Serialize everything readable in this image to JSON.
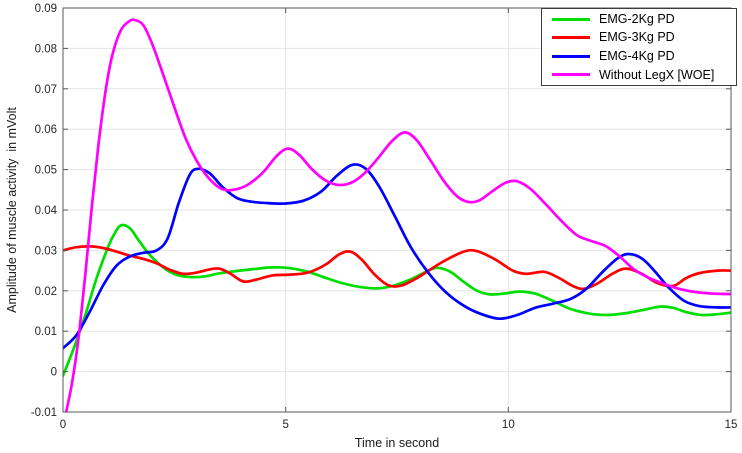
{
  "chart_data": {
    "type": "line",
    "title": "",
    "xlabel": "Time in second",
    "ylabel": "Amplitude of muscle activity  in mVolt",
    "xlim": [
      0,
      15
    ],
    "ylim": [
      -0.01,
      0.09
    ],
    "xticks": [
      0,
      5,
      10,
      15
    ],
    "xtick_labels": [
      "0",
      "5",
      "10",
      "15"
    ],
    "yticks": [
      -0.01,
      0,
      0.01,
      0.02,
      0.03,
      0.04,
      0.05,
      0.06,
      0.07,
      0.08,
      0.09
    ],
    "ytick_labels": [
      "-0.01",
      "0",
      "0.01",
      "0.02",
      "0.03",
      "0.04",
      "0.05",
      "0.06",
      "0.07",
      "0.08",
      "0.09"
    ],
    "grid": true,
    "grid_color": "#e4e4e4",
    "spine_color": "#5a5a5a",
    "background": "#ffffff",
    "legend": {
      "position": "top-right",
      "border_color": "#3c3c3c",
      "background": "#ffffff"
    },
    "series": [
      {
        "name": "EMG-2Kg PD",
        "color": "#00dd00",
        "points": [
          [
            0,
            -0.001
          ],
          [
            0.25,
            0.006
          ],
          [
            0.5,
            0.014
          ],
          [
            0.75,
            0.023
          ],
          [
            1.0,
            0.0305
          ],
          [
            1.15,
            0.034
          ],
          [
            1.3,
            0.0362
          ],
          [
            1.5,
            0.0355
          ],
          [
            1.7,
            0.0325
          ],
          [
            1.9,
            0.0295
          ],
          [
            2.1,
            0.0272
          ],
          [
            2.35,
            0.025
          ],
          [
            2.6,
            0.0238
          ],
          [
            2.9,
            0.0234
          ],
          [
            3.2,
            0.0236
          ],
          [
            3.5,
            0.0243
          ],
          [
            3.9,
            0.0249
          ],
          [
            4.3,
            0.0254
          ],
          [
            4.7,
            0.0258
          ],
          [
            5.1,
            0.0256
          ],
          [
            5.5,
            0.0247
          ],
          [
            5.9,
            0.0232
          ],
          [
            6.3,
            0.0218
          ],
          [
            6.7,
            0.0209
          ],
          [
            7.05,
            0.0206
          ],
          [
            7.4,
            0.0212
          ],
          [
            7.8,
            0.0228
          ],
          [
            8.15,
            0.0247
          ],
          [
            8.4,
            0.0257
          ],
          [
            8.7,
            0.0247
          ],
          [
            9.0,
            0.0222
          ],
          [
            9.3,
            0.02
          ],
          [
            9.6,
            0.0191
          ],
          [
            9.9,
            0.0193
          ],
          [
            10.25,
            0.0198
          ],
          [
            10.6,
            0.0193
          ],
          [
            11.0,
            0.0175
          ],
          [
            11.4,
            0.0155
          ],
          [
            11.8,
            0.0144
          ],
          [
            12.2,
            0.014
          ],
          [
            12.6,
            0.0144
          ],
          [
            13.0,
            0.0152
          ],
          [
            13.4,
            0.0161
          ],
          [
            13.7,
            0.0158
          ],
          [
            14.0,
            0.0147
          ],
          [
            14.35,
            0.014
          ],
          [
            14.7,
            0.0142
          ],
          [
            15,
            0.0146
          ]
        ]
      },
      {
        "name": "EMG-3Kg PD",
        "color": "#ff0000",
        "points": [
          [
            0,
            0.03
          ],
          [
            0.3,
            0.0308
          ],
          [
            0.6,
            0.031
          ],
          [
            0.9,
            0.0306
          ],
          [
            1.2,
            0.0297
          ],
          [
            1.5,
            0.0287
          ],
          [
            1.8,
            0.0279
          ],
          [
            2.1,
            0.0268
          ],
          [
            2.4,
            0.0252
          ],
          [
            2.7,
            0.0242
          ],
          [
            3.0,
            0.0245
          ],
          [
            3.25,
            0.0252
          ],
          [
            3.5,
            0.0255
          ],
          [
            3.75,
            0.0243
          ],
          [
            4.05,
            0.0223
          ],
          [
            4.35,
            0.0228
          ],
          [
            4.7,
            0.0238
          ],
          [
            5.1,
            0.024
          ],
          [
            5.5,
            0.0245
          ],
          [
            5.9,
            0.0265
          ],
          [
            6.2,
            0.029
          ],
          [
            6.45,
            0.0297
          ],
          [
            6.7,
            0.0278
          ],
          [
            7.0,
            0.024
          ],
          [
            7.3,
            0.0214
          ],
          [
            7.6,
            0.0213
          ],
          [
            8.0,
            0.0235
          ],
          [
            8.5,
            0.027
          ],
          [
            9.0,
            0.0297
          ],
          [
            9.3,
            0.0298
          ],
          [
            9.7,
            0.0278
          ],
          [
            10.1,
            0.025
          ],
          [
            10.4,
            0.0242
          ],
          [
            10.8,
            0.0247
          ],
          [
            11.1,
            0.0234
          ],
          [
            11.45,
            0.0212
          ],
          [
            11.7,
            0.0205
          ],
          [
            12.0,
            0.0218
          ],
          [
            12.35,
            0.0243
          ],
          [
            12.65,
            0.0255
          ],
          [
            13.0,
            0.0242
          ],
          [
            13.35,
            0.0219
          ],
          [
            13.7,
            0.0212
          ],
          [
            14.0,
            0.0232
          ],
          [
            14.3,
            0.0244
          ],
          [
            14.7,
            0.025
          ],
          [
            15,
            0.025
          ]
        ]
      },
      {
        "name": "EMG-4Kg PD",
        "color": "#0000ff",
        "points": [
          [
            0,
            0.0058
          ],
          [
            0.3,
            0.009
          ],
          [
            0.6,
            0.0148
          ],
          [
            0.9,
            0.0213
          ],
          [
            1.2,
            0.0262
          ],
          [
            1.5,
            0.0285
          ],
          [
            1.8,
            0.0294
          ],
          [
            2.1,
            0.03
          ],
          [
            2.35,
            0.033
          ],
          [
            2.6,
            0.0418
          ],
          [
            2.85,
            0.0488
          ],
          [
            3.05,
            0.0502
          ],
          [
            3.3,
            0.049
          ],
          [
            3.6,
            0.0455
          ],
          [
            3.9,
            0.043
          ],
          [
            4.2,
            0.0421
          ],
          [
            4.6,
            0.0417
          ],
          [
            5.0,
            0.0416
          ],
          [
            5.4,
            0.0423
          ],
          [
            5.8,
            0.0446
          ],
          [
            6.15,
            0.0485
          ],
          [
            6.5,
            0.0512
          ],
          [
            6.8,
            0.0502
          ],
          [
            7.1,
            0.0458
          ],
          [
            7.45,
            0.0385
          ],
          [
            7.8,
            0.031
          ],
          [
            8.2,
            0.0245
          ],
          [
            8.6,
            0.0196
          ],
          [
            9.0,
            0.0163
          ],
          [
            9.4,
            0.0142
          ],
          [
            9.8,
            0.0131
          ],
          [
            10.2,
            0.014
          ],
          [
            10.6,
            0.0158
          ],
          [
            11.0,
            0.0168
          ],
          [
            11.4,
            0.018
          ],
          [
            11.75,
            0.0205
          ],
          [
            12.1,
            0.0245
          ],
          [
            12.45,
            0.028
          ],
          [
            12.7,
            0.0291
          ],
          [
            13.0,
            0.028
          ],
          [
            13.3,
            0.0247
          ],
          [
            13.6,
            0.0208
          ],
          [
            13.95,
            0.0175
          ],
          [
            14.3,
            0.0162
          ],
          [
            14.7,
            0.0159
          ],
          [
            15,
            0.0159
          ]
        ]
      },
      {
        "name": "Without LegX [WOE]",
        "color": "#ff00ff",
        "points": [
          [
            0.07,
            -0.01
          ],
          [
            0.2,
            -0.003
          ],
          [
            0.35,
            0.0085
          ],
          [
            0.5,
            0.024
          ],
          [
            0.65,
            0.041
          ],
          [
            0.8,
            0.0565
          ],
          [
            0.95,
            0.069
          ],
          [
            1.1,
            0.078
          ],
          [
            1.3,
            0.0845
          ],
          [
            1.5,
            0.0868
          ],
          [
            1.62,
            0.087
          ],
          [
            1.8,
            0.0858
          ],
          [
            2.0,
            0.0812
          ],
          [
            2.25,
            0.0735
          ],
          [
            2.5,
            0.0655
          ],
          [
            2.75,
            0.0578
          ],
          [
            3.0,
            0.0522
          ],
          [
            3.25,
            0.0482
          ],
          [
            3.5,
            0.0456
          ],
          [
            3.7,
            0.0449
          ],
          [
            3.95,
            0.0453
          ],
          [
            4.2,
            0.0466
          ],
          [
            4.5,
            0.0494
          ],
          [
            4.8,
            0.0534
          ],
          [
            5.05,
            0.0552
          ],
          [
            5.3,
            0.0537
          ],
          [
            5.6,
            0.05
          ],
          [
            5.9,
            0.0473
          ],
          [
            6.2,
            0.0462
          ],
          [
            6.5,
            0.0469
          ],
          [
            6.8,
            0.0494
          ],
          [
            7.1,
            0.0532
          ],
          [
            7.4,
            0.0572
          ],
          [
            7.68,
            0.0592
          ],
          [
            7.95,
            0.0572
          ],
          [
            8.25,
            0.0523
          ],
          [
            8.55,
            0.0472
          ],
          [
            8.85,
            0.0434
          ],
          [
            9.1,
            0.042
          ],
          [
            9.35,
            0.0424
          ],
          [
            9.65,
            0.0447
          ],
          [
            9.95,
            0.0468
          ],
          [
            10.2,
            0.0471
          ],
          [
            10.5,
            0.0452
          ],
          [
            10.85,
            0.0413
          ],
          [
            11.2,
            0.0372
          ],
          [
            11.55,
            0.0337
          ],
          [
            11.9,
            0.0322
          ],
          [
            12.2,
            0.031
          ],
          [
            12.5,
            0.0285
          ],
          [
            12.8,
            0.0255
          ],
          [
            13.1,
            0.0235
          ],
          [
            13.45,
            0.0219
          ],
          [
            13.8,
            0.0206
          ],
          [
            14.2,
            0.0197
          ],
          [
            14.6,
            0.0193
          ],
          [
            15,
            0.0192
          ]
        ]
      }
    ]
  }
}
